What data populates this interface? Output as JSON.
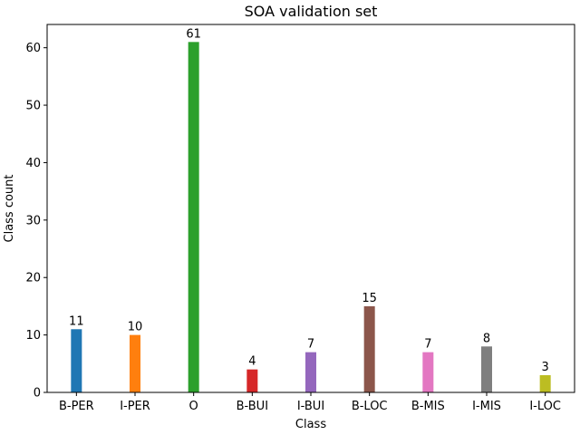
{
  "chart_data": {
    "type": "bar",
    "title": "SOA validation set",
    "xlabel": "Class",
    "ylabel": "Class count",
    "categories": [
      "B-PER",
      "I-PER",
      "O",
      "B-BUI",
      "I-BUI",
      "B-LOC",
      "B-MIS",
      "I-MIS",
      "I-LOC"
    ],
    "values": [
      11,
      10,
      61,
      4,
      7,
      15,
      7,
      8,
      3
    ],
    "colors": [
      "#1f77b4",
      "#ff7f0e",
      "#2ca02c",
      "#d62728",
      "#9467bd",
      "#8c564b",
      "#e377c2",
      "#7f7f7f",
      "#bcbd22"
    ],
    "ylim": [
      0,
      64.05
    ],
    "yticks": [
      0,
      10,
      20,
      30,
      40,
      50,
      60
    ],
    "grid": false,
    "legend": "none"
  }
}
